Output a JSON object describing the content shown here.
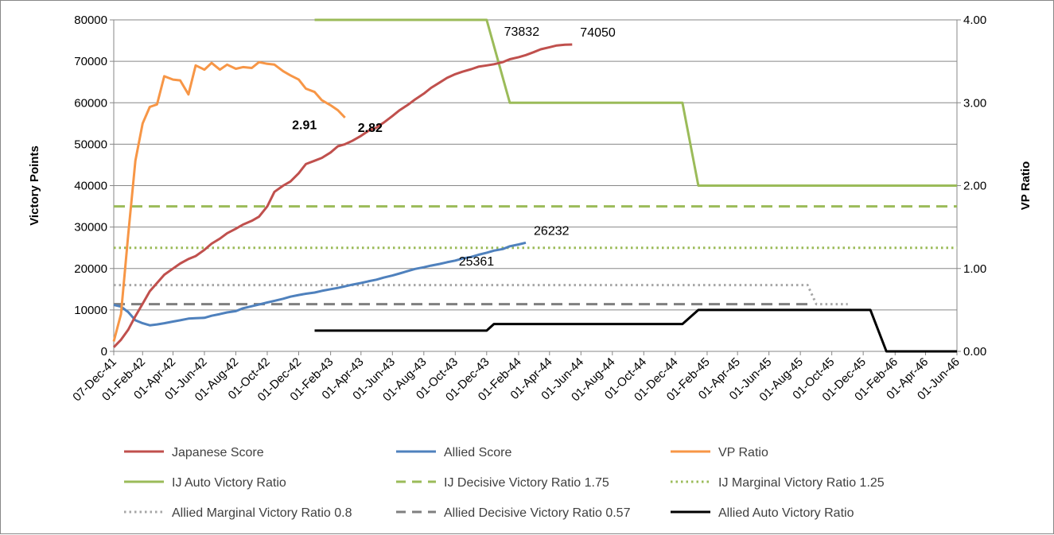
{
  "chart_data": {
    "type": "line",
    "title": "",
    "ylabel": "Victory Points",
    "y2label": "VP Ratio",
    "ylim": [
      0,
      80000
    ],
    "y2lim": [
      0,
      4
    ],
    "yticks": [
      "0",
      "10000",
      "20000",
      "30000",
      "40000",
      "50000",
      "60000",
      "70000",
      "80000"
    ],
    "y2ticks": [
      "0.00",
      "1.00",
      "2.00",
      "3.00",
      "4.00"
    ],
    "xticks": [
      "07-Dec-41",
      "01-Feb-42",
      "01-Apr-42",
      "01-Jun-42",
      "01-Aug-42",
      "01-Oct-42",
      "01-Dec-42",
      "01-Feb-43",
      "01-Apr-43",
      "01-Jun-43",
      "01-Aug-43",
      "01-Oct-43",
      "01-Dec-43",
      "01-Feb-44",
      "01-Apr-44",
      "01-Jun-44",
      "01-Aug-44",
      "01-Oct-44",
      "01-Dec-44",
      "01-Feb-45",
      "01-Apr-45",
      "01-Jun-45",
      "01-Aug-45",
      "01-Oct-45",
      "01-Dec-45",
      "01-Feb-46",
      "01-Apr-46",
      "01-Jun-46"
    ],
    "grid": true,
    "legend_position": "bottom",
    "series": [
      {
        "name": "Japanese Score",
        "axis": "left",
        "color": "#C0504D",
        "style": "solid",
        "points": [
          [
            "07-Dec-41",
            1000
          ],
          [
            "21-Dec-41",
            2800
          ],
          [
            "04-Jan-42",
            5200
          ],
          [
            "18-Jan-42",
            8500
          ],
          [
            "01-Feb-42",
            11500
          ],
          [
            "15-Feb-42",
            14500
          ],
          [
            "01-Mar-42",
            16500
          ],
          [
            "15-Mar-42",
            18500
          ],
          [
            "01-Apr-42",
            20000
          ],
          [
            "15-Apr-42",
            21200
          ],
          [
            "01-May-42",
            22300
          ],
          [
            "15-May-42",
            23000
          ],
          [
            "01-Jun-42",
            24500
          ],
          [
            "15-Jun-42",
            26000
          ],
          [
            "01-Jul-42",
            27200
          ],
          [
            "15-Jul-42",
            28500
          ],
          [
            "01-Aug-42",
            29600
          ],
          [
            "15-Aug-42",
            30600
          ],
          [
            "01-Sep-42",
            31500
          ],
          [
            "15-Sep-42",
            32500
          ],
          [
            "01-Oct-42",
            35000
          ],
          [
            "15-Oct-42",
            38500
          ],
          [
            "01-Nov-42",
            40000
          ],
          [
            "15-Nov-42",
            41000
          ],
          [
            "01-Dec-42",
            43000
          ],
          [
            "15-Dec-42",
            45200
          ],
          [
            "01-Jan-43",
            46000
          ],
          [
            "15-Jan-43",
            46700
          ],
          [
            "01-Feb-43",
            48000
          ],
          [
            "15-Feb-43",
            49500
          ],
          [
            "01-Mar-43",
            50000
          ],
          [
            "15-Mar-43",
            50800
          ],
          [
            "01-Apr-43",
            52000
          ],
          [
            "15-Apr-43",
            53200
          ],
          [
            "01-May-43",
            54000
          ],
          [
            "15-May-43",
            55200
          ],
          [
            "01-Jun-43",
            56800
          ],
          [
            "15-Jun-43",
            58200
          ],
          [
            "01-Jul-43",
            59500
          ],
          [
            "15-Jul-43",
            60800
          ],
          [
            "01-Aug-43",
            62200
          ],
          [
            "15-Aug-43",
            63600
          ],
          [
            "01-Sep-43",
            64900
          ],
          [
            "15-Sep-43",
            66000
          ],
          [
            "01-Oct-43",
            66900
          ],
          [
            "15-Oct-43",
            67500
          ],
          [
            "01-Nov-43",
            68100
          ],
          [
            "15-Nov-43",
            68700
          ],
          [
            "01-Dec-43",
            69000
          ],
          [
            "15-Dec-43",
            69300
          ],
          [
            "01-Jan-44",
            69800
          ],
          [
            "15-Jan-44",
            70500
          ],
          [
            "01-Feb-44",
            71000
          ],
          [
            "15-Feb-44",
            71500
          ],
          [
            "01-Mar-44",
            72200
          ],
          [
            "15-Mar-44",
            72900
          ],
          [
            "01-Apr-44",
            73400
          ],
          [
            "15-Apr-44",
            73832
          ],
          [
            "01-May-44",
            74000
          ],
          [
            "15-May-44",
            74050
          ]
        ]
      },
      {
        "name": "Allied Score",
        "axis": "left",
        "color": "#4F81BD",
        "style": "solid",
        "points": [
          [
            "07-Dec-41",
            11200
          ],
          [
            "21-Dec-41",
            10800
          ],
          [
            "04-Jan-42",
            9500
          ],
          [
            "18-Jan-42",
            7500
          ],
          [
            "01-Feb-42",
            6800
          ],
          [
            "15-Feb-42",
            6300
          ],
          [
            "01-Mar-42",
            6500
          ],
          [
            "15-Mar-42",
            6800
          ],
          [
            "01-Apr-42",
            7200
          ],
          [
            "15-Apr-42",
            7500
          ],
          [
            "01-May-42",
            7900
          ],
          [
            "15-May-42",
            8000
          ],
          [
            "01-Jun-42",
            8100
          ],
          [
            "15-Jun-42",
            8600
          ],
          [
            "01-Jul-42",
            9000
          ],
          [
            "15-Jul-42",
            9400
          ],
          [
            "01-Aug-42",
            9700
          ],
          [
            "15-Aug-42",
            10400
          ],
          [
            "01-Sep-42",
            10900
          ],
          [
            "15-Sep-42",
            11300
          ],
          [
            "01-Oct-42",
            11800
          ],
          [
            "15-Oct-42",
            12200
          ],
          [
            "01-Nov-42",
            12700
          ],
          [
            "15-Nov-42",
            13200
          ],
          [
            "01-Dec-42",
            13600
          ],
          [
            "15-Dec-42",
            13900
          ],
          [
            "01-Jan-43",
            14200
          ],
          [
            "15-Jan-43",
            14600
          ],
          [
            "01-Feb-43",
            15000
          ],
          [
            "15-Feb-43",
            15300
          ],
          [
            "01-Mar-43",
            15700
          ],
          [
            "15-Mar-43",
            16100
          ],
          [
            "01-Apr-43",
            16500
          ],
          [
            "15-Apr-43",
            16900
          ],
          [
            "01-May-43",
            17300
          ],
          [
            "15-May-43",
            17800
          ],
          [
            "01-Jun-43",
            18300
          ],
          [
            "15-Jun-43",
            18800
          ],
          [
            "01-Jul-43",
            19400
          ],
          [
            "15-Jul-43",
            19900
          ],
          [
            "01-Aug-43",
            20300
          ],
          [
            "15-Aug-43",
            20700
          ],
          [
            "01-Sep-43",
            21100
          ],
          [
            "15-Sep-43",
            21500
          ],
          [
            "01-Oct-43",
            21900
          ],
          [
            "15-Oct-43",
            22400
          ],
          [
            "01-Nov-43",
            22800
          ],
          [
            "15-Nov-43",
            23300
          ],
          [
            "01-Dec-43",
            23800
          ],
          [
            "15-Dec-43",
            24300
          ],
          [
            "01-Jan-44",
            24700
          ],
          [
            "15-Jan-44",
            25361
          ],
          [
            "01-Feb-44",
            25800
          ],
          [
            "15-Feb-44",
            26232
          ]
        ]
      },
      {
        "name": "VP Ratio",
        "axis": "right",
        "color": "#F79646",
        "style": "solid",
        "points": [
          [
            "07-Dec-41",
            0.12
          ],
          [
            "21-Dec-41",
            0.45
          ],
          [
            "04-Jan-42",
            1.4
          ],
          [
            "18-Jan-42",
            2.3
          ],
          [
            "01-Feb-42",
            2.75
          ],
          [
            "15-Feb-42",
            2.95
          ],
          [
            "01-Mar-42",
            2.98
          ],
          [
            "15-Mar-42",
            3.32
          ],
          [
            "01-Apr-42",
            3.28
          ],
          [
            "15-Apr-42",
            3.27
          ],
          [
            "01-May-42",
            3.1
          ],
          [
            "15-May-42",
            3.45
          ],
          [
            "01-Jun-42",
            3.4
          ],
          [
            "15-Jun-42",
            3.48
          ],
          [
            "01-Jul-42",
            3.4
          ],
          [
            "15-Jul-42",
            3.46
          ],
          [
            "01-Aug-42",
            3.41
          ],
          [
            "15-Aug-42",
            3.43
          ],
          [
            "01-Sep-42",
            3.42
          ],
          [
            "15-Sep-42",
            3.49
          ],
          [
            "01-Oct-42",
            3.47
          ],
          [
            "15-Oct-42",
            3.46
          ],
          [
            "01-Nov-42",
            3.38
          ],
          [
            "15-Nov-42",
            3.33
          ],
          [
            "01-Dec-42",
            3.28
          ],
          [
            "15-Dec-42",
            3.17
          ],
          [
            "01-Jan-43",
            3.13
          ],
          [
            "15-Jan-43",
            3.03
          ],
          [
            "01-Feb-43",
            2.97
          ],
          [
            "15-Feb-43",
            2.91
          ],
          [
            "01-Mar-43",
            2.82
          ]
        ]
      },
      {
        "name": "IJ Auto Victory Ratio",
        "axis": "right",
        "color": "#9BBB59",
        "style": "solid",
        "points": [
          [
            "01-Jan-43",
            4.0
          ],
          [
            "01-Dec-43",
            4.0
          ],
          [
            "15-Jan-44",
            3.0
          ],
          [
            "15-Dec-44",
            3.0
          ],
          [
            "15-Jan-45",
            2.0
          ],
          [
            "01-Jun-46",
            2.0
          ]
        ]
      },
      {
        "name": "IJ Decisive Victory Ratio 1.75",
        "axis": "right",
        "color": "#9BBB59",
        "style": "dashed",
        "points": [
          [
            "07-Dec-41",
            1.75
          ],
          [
            "01-Jun-46",
            1.75
          ]
        ]
      },
      {
        "name": "IJ Marginal Victory Ratio 1.25",
        "axis": "right",
        "color": "#9BBB59",
        "style": "dotted",
        "points": [
          [
            "07-Dec-41",
            1.25
          ],
          [
            "01-Jun-46",
            1.25
          ]
        ]
      },
      {
        "name": "Allied Marginal Victory Ratio 0.8",
        "axis": "right",
        "color": "#A6A6A6",
        "style": "dotted",
        "points": [
          [
            "07-Dec-41",
            0.8
          ],
          [
            "15-Aug-45",
            0.8
          ],
          [
            "01-Sep-45",
            0.57
          ],
          [
            "01-Nov-45",
            0.57
          ]
        ]
      },
      {
        "name": "Allied Decisive Victory Ratio 0.57",
        "axis": "right",
        "color": "#7F7F7F",
        "style": "dashed",
        "points": [
          [
            "07-Dec-41",
            0.57
          ],
          [
            "15-Aug-45",
            0.57
          ]
        ]
      },
      {
        "name": "Allied Auto Victory Ratio",
        "axis": "right",
        "color": "#000000",
        "style": "solid",
        "points": [
          [
            "01-Jan-43",
            0.25
          ],
          [
            "01-Dec-43",
            0.25
          ],
          [
            "15-Dec-43",
            0.33
          ],
          [
            "15-Dec-44",
            0.33
          ],
          [
            "15-Jan-45",
            0.5
          ],
          [
            "15-Dec-45",
            0.5
          ],
          [
            "15-Jan-46",
            0.0
          ],
          [
            "01-Jun-46",
            0.0
          ]
        ]
      }
    ],
    "annotations": [
      {
        "text": "73832",
        "series": "Japanese Score",
        "date": "15-Apr-44",
        "value": 73832,
        "bold": false,
        "pos": "above-left"
      },
      {
        "text": "74050",
        "series": "Japanese Score",
        "date": "15-May-44",
        "value": 74050,
        "bold": false,
        "pos": "above-right"
      },
      {
        "text": "2.91",
        "series": "VP Ratio",
        "date": "15-Feb-43",
        "value": 2.91,
        "bold": true,
        "pos": "below-left"
      },
      {
        "text": "2.82",
        "series": "VP Ratio",
        "date": "01-Mar-43",
        "value": 2.82,
        "bold": true,
        "pos": "below-right"
      },
      {
        "text": "26232",
        "series": "Allied Score",
        "date": "15-Feb-44",
        "value": 26232,
        "bold": false,
        "pos": "above-right"
      },
      {
        "text": "25361",
        "series": "Allied Score",
        "date": "15-Jan-44",
        "value": 25361,
        "bold": false,
        "pos": "below-left"
      }
    ]
  }
}
